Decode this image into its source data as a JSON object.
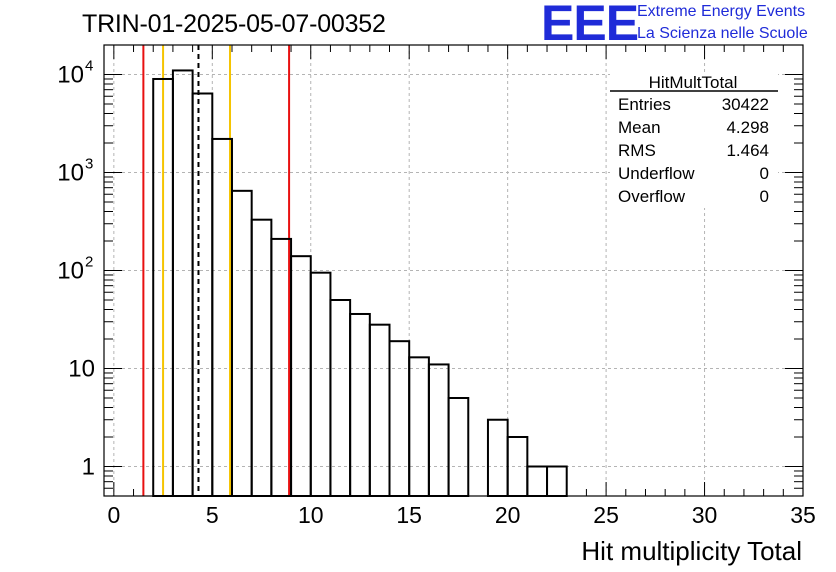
{
  "title": "TRIN-01-2025-05-07-00352",
  "logo": {
    "text": "EEE",
    "line1": "Extreme Energy Events",
    "line2": "La Scienza nelle Scuole",
    "color": "#1f2bd8"
  },
  "stats": {
    "name": "HitMultTotal",
    "rows": [
      {
        "label": "Entries",
        "value": "30422"
      },
      {
        "label": "Mean",
        "value": "4.298"
      },
      {
        "label": "RMS",
        "value": "1.464"
      },
      {
        "label": "Underflow",
        "value": "0"
      },
      {
        "label": "Overflow",
        "value": "0"
      }
    ]
  },
  "chart_data": {
    "type": "histogram",
    "xlabel": "Hit multiplicity Total",
    "ylabel": "",
    "xlim": [
      -0.5,
      35
    ],
    "ylim": [
      0.5,
      20000
    ],
    "yscale": "log",
    "grid": true,
    "bins": [
      {
        "x": 2.5,
        "count": 9000
      },
      {
        "x": 3.5,
        "count": 11000
      },
      {
        "x": 4.5,
        "count": 6400
      },
      {
        "x": 5.5,
        "count": 2200
      },
      {
        "x": 6.5,
        "count": 650
      },
      {
        "x": 7.5,
        "count": 330
      },
      {
        "x": 8.5,
        "count": 210
      },
      {
        "x": 9.5,
        "count": 140
      },
      {
        "x": 10.5,
        "count": 95
      },
      {
        "x": 11.5,
        "count": 50
      },
      {
        "x": 12.5,
        "count": 36
      },
      {
        "x": 13.5,
        "count": 28
      },
      {
        "x": 14.5,
        "count": 19
      },
      {
        "x": 15.5,
        "count": 13
      },
      {
        "x": 16.5,
        "count": 11
      },
      {
        "x": 17.5,
        "count": 5
      },
      {
        "x": 18.5,
        "count": 0
      },
      {
        "x": 19.5,
        "count": 3
      },
      {
        "x": 20.5,
        "count": 2
      },
      {
        "x": 21.5,
        "count": 1
      },
      {
        "x": 22.5,
        "count": 1
      }
    ],
    "xticks": [
      0,
      5,
      10,
      15,
      20,
      25,
      30,
      35
    ],
    "xtick_labels": [
      "0",
      "5",
      "10",
      "15",
      "20",
      "25",
      "30",
      "35"
    ],
    "yticks": [
      1,
      10,
      100,
      1000,
      10000
    ],
    "ytick_labels": [
      {
        "base": "1",
        "exp": ""
      },
      {
        "base": "10",
        "exp": ""
      },
      {
        "base": "10",
        "exp": "2"
      },
      {
        "base": "10",
        "exp": "3"
      },
      {
        "base": "10",
        "exp": "4"
      }
    ],
    "lines": [
      {
        "x": 1.5,
        "color": "#e81010",
        "style": "solid"
      },
      {
        "x": 2.5,
        "color": "#f5c400",
        "style": "solid"
      },
      {
        "x": 4.298,
        "color": "#000000",
        "style": "dashed"
      },
      {
        "x": 5.9,
        "color": "#f5c400",
        "style": "solid"
      },
      {
        "x": 8.9,
        "color": "#e81010",
        "style": "solid"
      }
    ]
  }
}
